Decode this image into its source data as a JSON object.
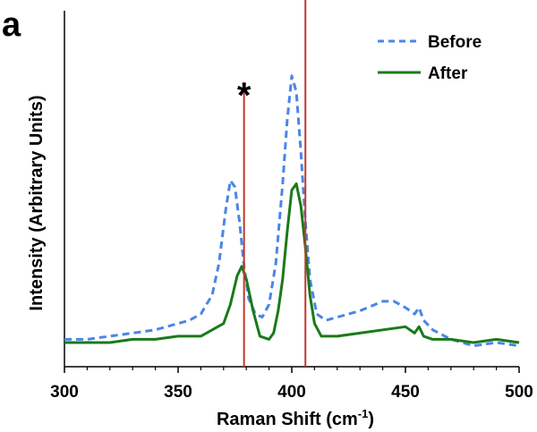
{
  "panel_label": "a",
  "chart_data": {
    "type": "line",
    "title": "",
    "xlabel": "Raman Shift (cm",
    "xlabel_sup": "-1",
    "xlabel_close": ")",
    "ylabel": "Intensity (Arbitrary Units)",
    "xlim": [
      300,
      500
    ],
    "ylim": [
      0,
      1
    ],
    "x_ticks": [
      300,
      350,
      400,
      450,
      500
    ],
    "y_ticks_shown": false,
    "grid": false,
    "legend_position": "top-right",
    "colors": {
      "before": "#4a86e8",
      "after": "#1a7a1a",
      "marker_line": "#c0392b"
    },
    "series": [
      {
        "name": "Before",
        "style": "dashed",
        "x": [
          300,
          310,
          320,
          330,
          340,
          350,
          355,
          360,
          365,
          368,
          371,
          373,
          375,
          377,
          379,
          381,
          384,
          387,
          390,
          393,
          396,
          398,
          400,
          402,
          404,
          406,
          408,
          411,
          415,
          420,
          430,
          440,
          445,
          450,
          454,
          456,
          458,
          462,
          470,
          480,
          490,
          500
        ],
        "y": [
          0.01,
          0.01,
          0.02,
          0.03,
          0.04,
          0.06,
          0.07,
          0.09,
          0.15,
          0.25,
          0.42,
          0.51,
          0.49,
          0.38,
          0.24,
          0.14,
          0.09,
          0.08,
          0.12,
          0.25,
          0.5,
          0.7,
          0.84,
          0.79,
          0.6,
          0.38,
          0.2,
          0.09,
          0.07,
          0.08,
          0.1,
          0.13,
          0.13,
          0.11,
          0.09,
          0.11,
          0.07,
          0.04,
          0.01,
          -0.01,
          0.0,
          -0.01
        ]
      },
      {
        "name": "After",
        "style": "solid",
        "x": [
          300,
          310,
          320,
          330,
          340,
          350,
          360,
          365,
          370,
          373,
          376,
          378,
          380,
          383,
          386,
          390,
          392,
          394,
          396,
          398,
          400,
          402,
          404,
          406,
          408,
          410,
          413,
          416,
          420,
          430,
          440,
          450,
          454,
          456,
          458,
          462,
          470,
          480,
          490,
          500
        ],
        "y": [
          0.0,
          0.0,
          0.0,
          0.01,
          0.01,
          0.02,
          0.02,
          0.04,
          0.06,
          0.12,
          0.21,
          0.24,
          0.2,
          0.1,
          0.02,
          0.01,
          0.03,
          0.1,
          0.2,
          0.35,
          0.48,
          0.5,
          0.43,
          0.3,
          0.15,
          0.06,
          0.02,
          0.02,
          0.02,
          0.03,
          0.04,
          0.05,
          0.03,
          0.05,
          0.02,
          0.01,
          0.01,
          0.0,
          0.01,
          0.0
        ]
      }
    ],
    "markers": [
      {
        "x": 379,
        "top": 0.82,
        "label": "*"
      },
      {
        "x": 406,
        "top": 1.2,
        "label": "*"
      }
    ]
  }
}
